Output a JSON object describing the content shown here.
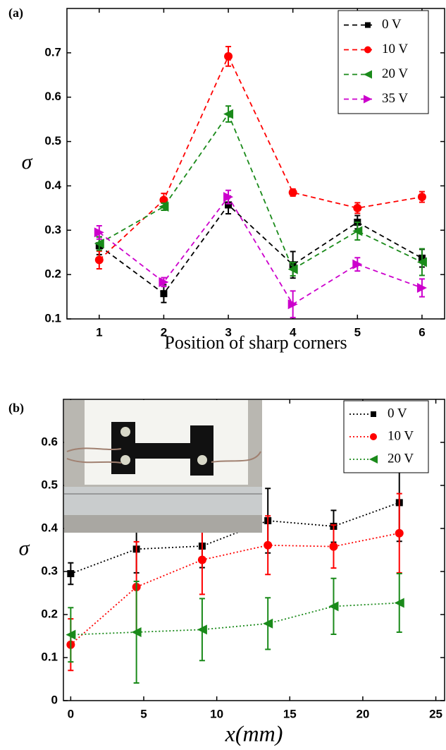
{
  "chart_data": [
    {
      "type": "line",
      "panel_label": "(a)",
      "x_label": "Position of sharp corners",
      "y_label": "σ",
      "x": [
        1,
        2,
        3,
        4,
        5,
        6
      ],
      "xlim": [
        0.5,
        6.35
      ],
      "xticks": [
        1,
        2,
        3,
        4,
        5,
        6
      ],
      "ylim": [
        0.1,
        0.8
      ],
      "yticks": [
        0.1,
        0.2,
        0.3,
        0.4,
        0.5,
        0.6,
        0.7
      ],
      "linestyle": "dashed",
      "legend": "upper right",
      "series": [
        {
          "name": "0 V",
          "color": "#000000",
          "marker": "square",
          "values": [
            0.265,
            0.157,
            0.357,
            0.222,
            0.318,
            0.237
          ],
          "errors": [
            0.02,
            0.02,
            0.02,
            0.03,
            0.015,
            0.02
          ]
        },
        {
          "name": "10 V",
          "color": "#ff0000",
          "marker": "circle",
          "values": [
            0.233,
            0.368,
            0.692,
            0.385,
            0.35,
            0.375
          ],
          "errors": [
            0.02,
            0.015,
            0.022,
            0.008,
            0.012,
            0.012
          ]
        },
        {
          "name": "20 V",
          "color": "#1a8a1a",
          "marker": "triangle-left",
          "values": [
            0.27,
            0.353,
            0.562,
            0.212,
            0.298,
            0.228
          ],
          "errors": [
            0.015,
            0.008,
            0.018,
            0.015,
            0.02,
            0.03
          ]
        },
        {
          "name": "35 V",
          "color": "#cc00cc",
          "marker": "triangle-right",
          "values": [
            0.295,
            0.183,
            0.375,
            0.133,
            0.223,
            0.17
          ],
          "errors": [
            0.015,
            0.01,
            0.015,
            0.03,
            0.015,
            0.02
          ]
        }
      ]
    },
    {
      "type": "line",
      "panel_label": "(b)",
      "x_label": "x(mm)",
      "y_label": "σ",
      "x": [
        0,
        4.5,
        9,
        13.5,
        18,
        22.5
      ],
      "xlim": [
        -0.5,
        25.6
      ],
      "xticks": [
        0,
        5,
        10,
        15,
        20,
        25
      ],
      "ylim": [
        0,
        0.7
      ],
      "yticks": [
        0,
        0.1,
        0.2,
        0.3,
        0.4,
        0.5,
        0.6
      ],
      "linestyle": "dotted",
      "legend": "upper right",
      "series": [
        {
          "name": "0 V",
          "color": "#000000",
          "marker": "square",
          "values": [
            0.295,
            0.352,
            0.359,
            0.418,
            0.405,
            0.46
          ],
          "errors": [
            0.025,
            0.055,
            0.05,
            0.075,
            0.037,
            0.09
          ]
        },
        {
          "name": "10 V",
          "color": "#ff0000",
          "marker": "circle",
          "values": [
            0.13,
            0.264,
            0.327,
            0.361,
            0.358,
            0.389
          ],
          "errors": [
            0.06,
            0.105,
            0.08,
            0.068,
            0.05,
            0.092
          ]
        },
        {
          "name": "20 V",
          "color": "#1a8a1a",
          "marker": "triangle-left",
          "values": [
            0.153,
            0.159,
            0.165,
            0.179,
            0.219,
            0.227
          ],
          "errors": [
            0.063,
            0.118,
            0.072,
            0.06,
            0.065,
            0.068
          ]
        }
      ]
    }
  ]
}
